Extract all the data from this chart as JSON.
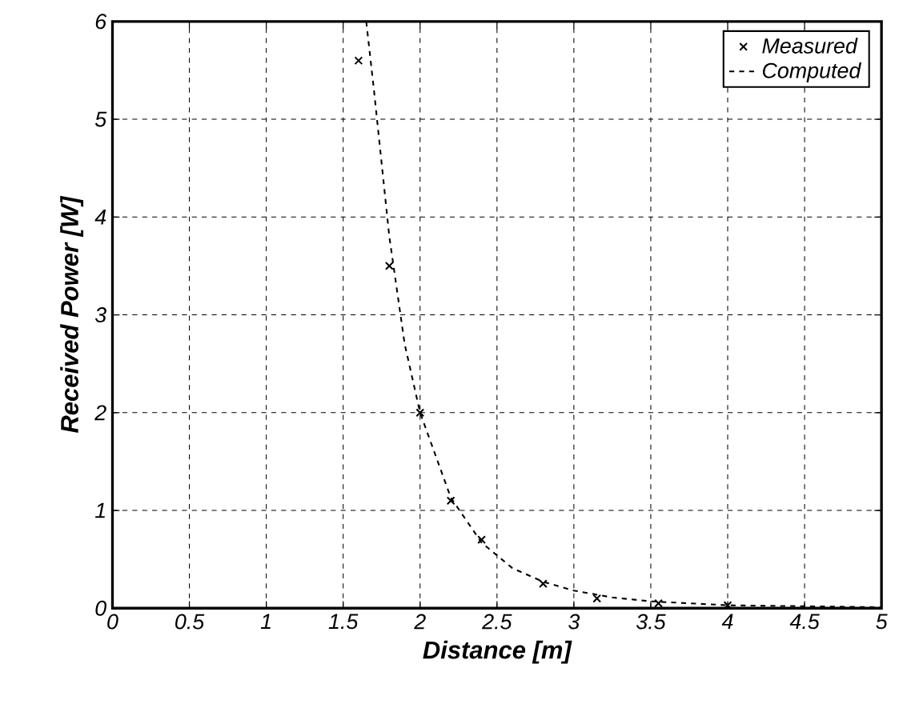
{
  "chart_data": {
    "type": "scatter",
    "xlabel": "Distance [m]",
    "ylabel": "Received Power [W]",
    "xlim": [
      0,
      5
    ],
    "ylim": [
      0,
      6
    ],
    "xticks": [
      0,
      0.5,
      1,
      1.5,
      2,
      2.5,
      3,
      3.5,
      4,
      4.5,
      5
    ],
    "yticks": [
      0,
      1,
      2,
      3,
      4,
      5,
      6
    ],
    "grid": true,
    "legend": "top right",
    "series": [
      {
        "name": "Measured",
        "color": "#000000",
        "marker": "cross",
        "x": [
          1.6,
          1.8,
          2.0,
          2.2,
          2.4,
          2.8,
          3.15,
          3.55,
          4.0
        ],
        "values": [
          5.6,
          3.5,
          2.0,
          1.1,
          0.7,
          0.25,
          0.1,
          0.05,
          0.03
        ]
      },
      {
        "name": "Computed",
        "type": "line",
        "color": "#000000",
        "marker": "none",
        "line_style": "dashed",
        "x": [
          1.65,
          1.7,
          1.8,
          1.9,
          2.0,
          2.2,
          2.4,
          2.6,
          2.8,
          3.0,
          3.25,
          3.5,
          4.0,
          4.5,
          5.0
        ],
        "values": [
          6.0,
          5.3,
          3.8,
          2.7,
          2.0,
          1.13,
          0.67,
          0.41,
          0.27,
          0.18,
          0.11,
          0.07,
          0.03,
          0.02,
          0.01
        ]
      }
    ]
  }
}
